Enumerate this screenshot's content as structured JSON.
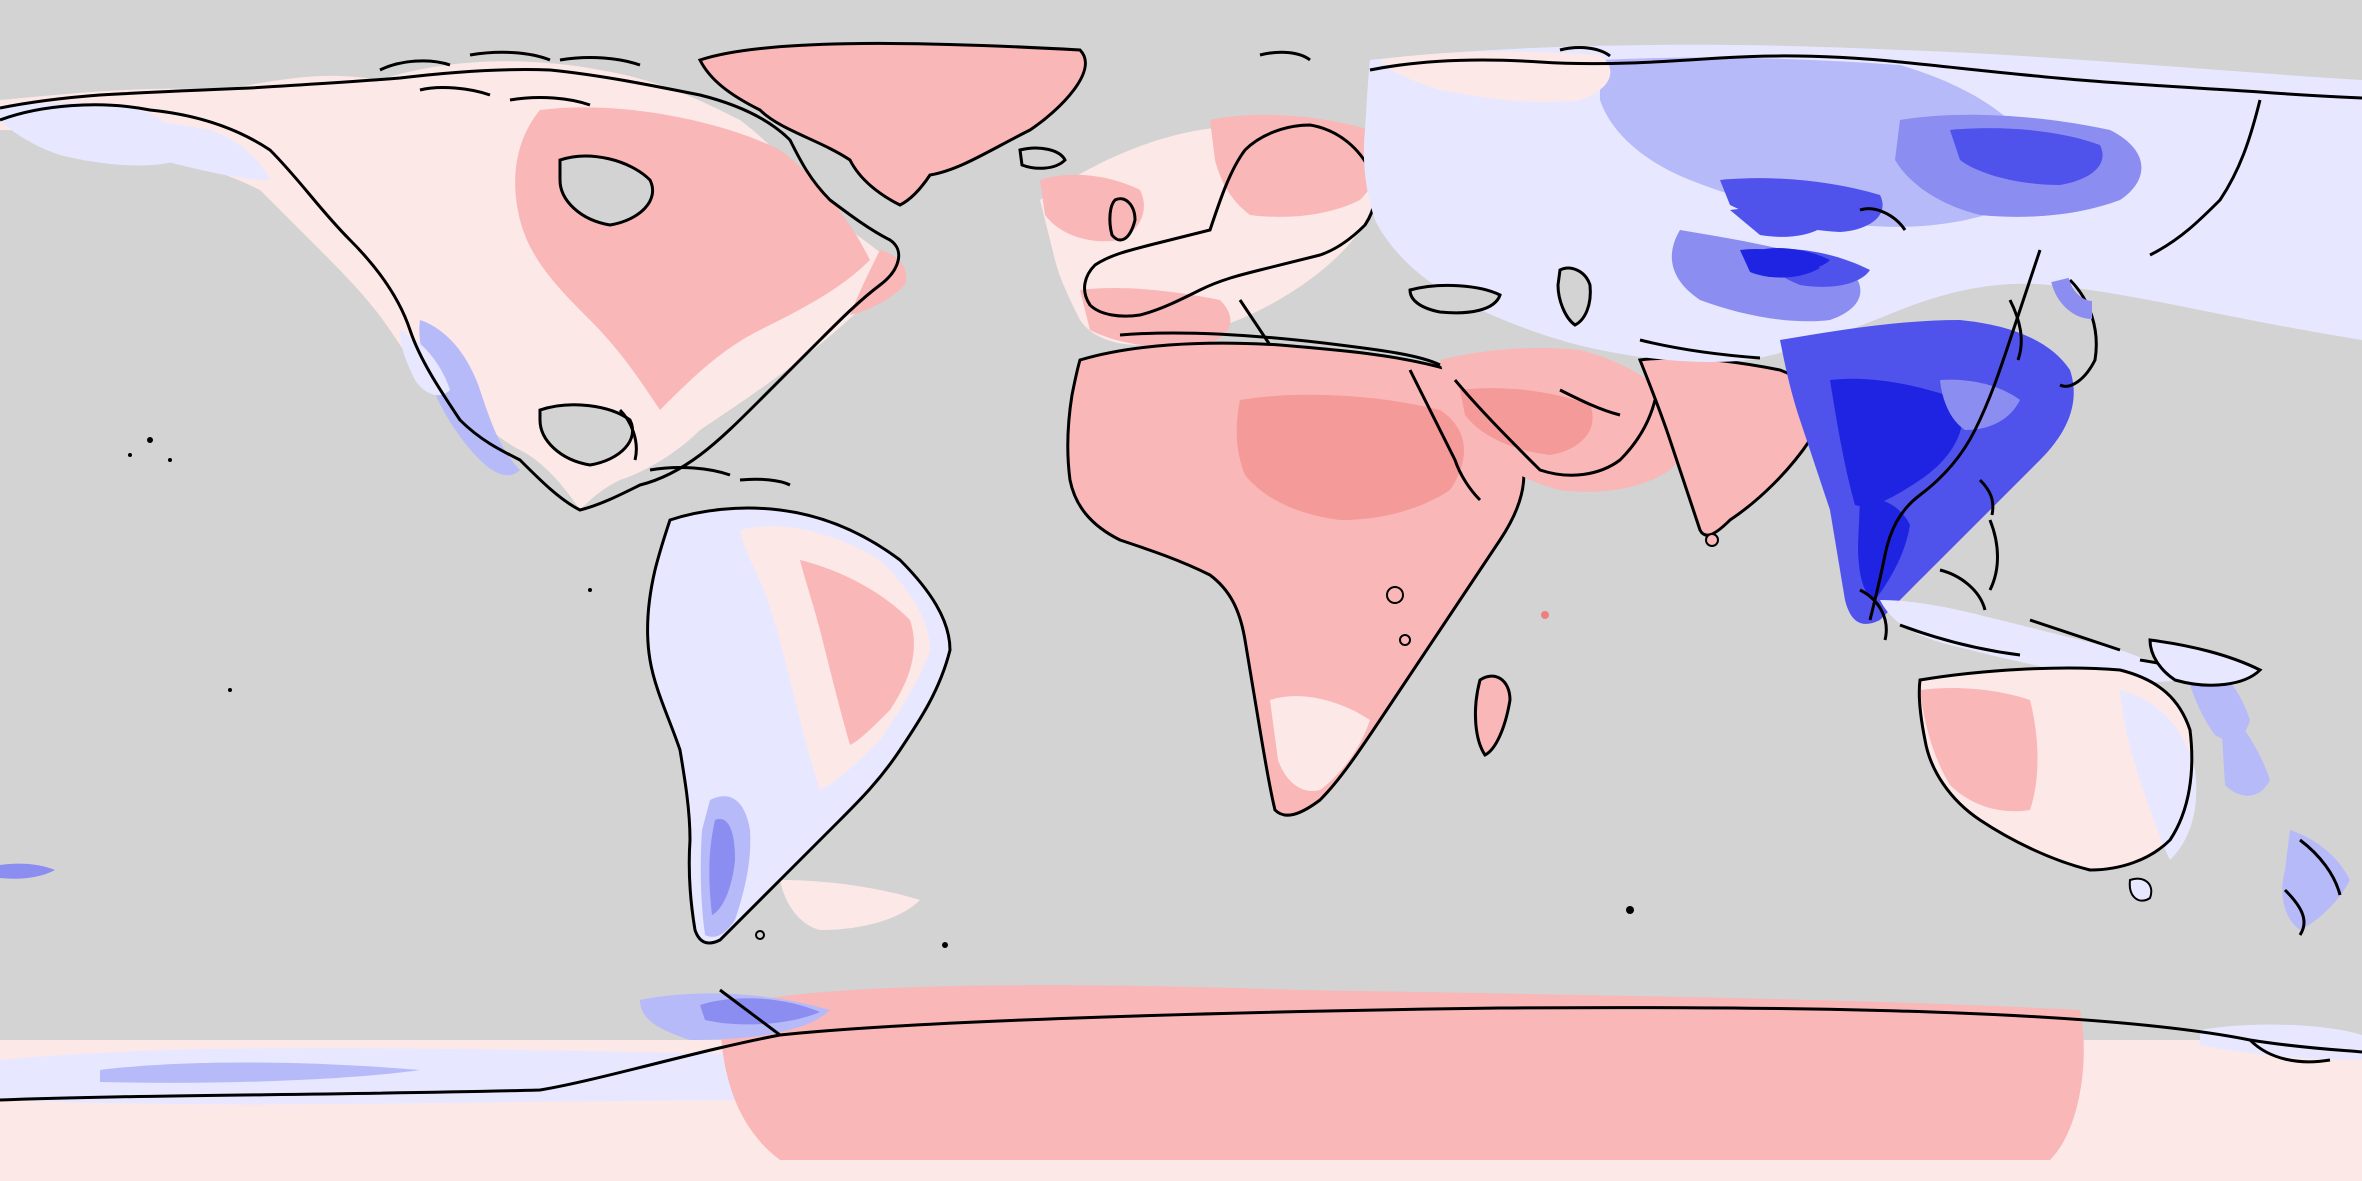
{
  "map": {
    "projection": "equirectangular",
    "extent": {
      "lon": [
        -180,
        180
      ],
      "lat": [
        -90,
        90
      ]
    },
    "colors": {
      "ocean_or_nodata": "#d3d3d3",
      "coastline": "#000000",
      "neutral": "#fde8e8",
      "warm_light": "#f9b7b7",
      "warm_medium": "#f49a98",
      "warm_strong": "#ee7f80",
      "cool_faint": "#e7e8ff",
      "cool_light": "#b7baf8",
      "cool_medium": "#8b8ef0",
      "cool_strong": "#4f52eb",
      "cool_deep": "#1f24e2"
    }
  }
}
